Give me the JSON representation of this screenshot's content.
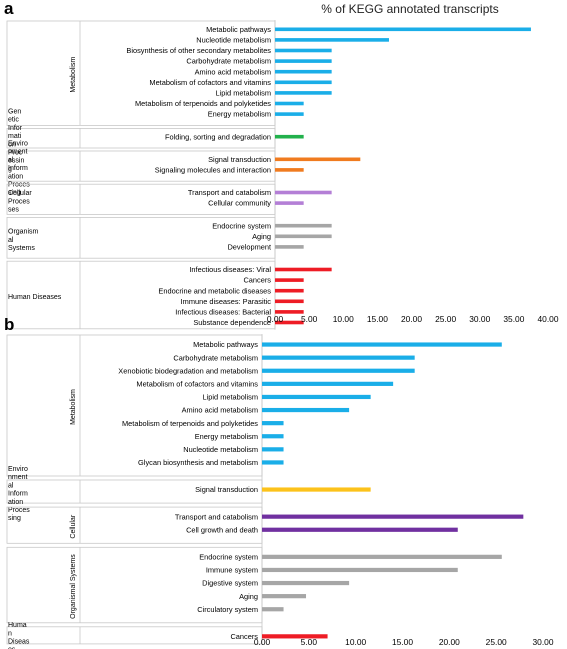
{
  "chart_data": [
    {
      "panel": "a",
      "type": "bar",
      "orientation": "horizontal",
      "title": "% of KEGG annotated transcripts",
      "xlim": [
        0,
        40
      ],
      "ticks": [
        "0.00",
        "5.00",
        "10.00",
        "15.00",
        "20.00",
        "25.00",
        "30.00",
        "35.00",
        "40.00"
      ],
      "grid": false,
      "groups": [
        {
          "label": [
            "Metabolism"
          ],
          "items": [
            {
              "label": "Metabolic pathways",
              "value": 37.5,
              "color": "#1aaee8"
            },
            {
              "label": "Nucleotide metabolism",
              "value": 16.7,
              "color": "#1aaee8"
            },
            {
              "label": "Biosynthesis of other secondary metabolites",
              "value": 8.3,
              "color": "#1aaee8"
            },
            {
              "label": "Carbohydrate metabolism",
              "value": 8.3,
              "color": "#1aaee8"
            },
            {
              "label": "Amino acid metabolism",
              "value": 8.3,
              "color": "#1aaee8"
            },
            {
              "label": "Metabolism of cofactors and vitamins",
              "value": 8.3,
              "color": "#1aaee8"
            },
            {
              "label": "Lipid metabolism",
              "value": 8.3,
              "color": "#1aaee8"
            },
            {
              "label": "Metabolism of terpenoids and polyketides",
              "value": 4.2,
              "color": "#1aaee8"
            },
            {
              "label": "Energy metabolism",
              "value": 4.2,
              "color": "#1aaee8"
            }
          ]
        },
        {
          "label": [
            "Gen",
            "etic",
            "Infor",
            "mati",
            "on",
            "Proc",
            "essin",
            "g"
          ],
          "items": [
            {
              "label": "Folding, sorting and degradation",
              "value": 4.2,
              "color": "#22b14c"
            }
          ]
        },
        {
          "label": [
            "Enviro",
            "nment",
            "al",
            "Inform",
            "ation",
            "Proces",
            "sing"
          ],
          "items": [
            {
              "label": "Signal transduction",
              "value": 12.5,
              "color": "#f07b1f"
            },
            {
              "label": "Signaling molecules and interaction",
              "value": 4.2,
              "color": "#f07b1f"
            }
          ]
        },
        {
          "label": [
            "Cellular",
            "Proces",
            "ses"
          ],
          "items": [
            {
              "label": "Transport and catabolism",
              "value": 8.3,
              "color": "#b47fd6"
            },
            {
              "label": "Cellular community",
              "value": 4.2,
              "color": "#b47fd6"
            }
          ]
        },
        {
          "label": [
            "Organism",
            "al",
            "Systems"
          ],
          "items": [
            {
              "label": "Endocrine system",
              "value": 8.3,
              "color": "#a6a6a6"
            },
            {
              "label": "Aging",
              "value": 8.3,
              "color": "#a6a6a6"
            },
            {
              "label": "Development",
              "value": 4.2,
              "color": "#a6a6a6"
            }
          ]
        },
        {
          "label": [
            "Human Diseases"
          ],
          "items": [
            {
              "label": "Infectious diseases: Viral",
              "value": 8.3,
              "color": "#ee1c25"
            },
            {
              "label": "Cancers",
              "value": 4.2,
              "color": "#ee1c25"
            },
            {
              "label": "Endocrine and metabolic diseases",
              "value": 4.2,
              "color": "#ee1c25"
            },
            {
              "label": "Immune diseases: Parasitic",
              "value": 4.2,
              "color": "#ee1c25"
            },
            {
              "label": "Infectious diseases: Bacterial",
              "value": 4.2,
              "color": "#ee1c25"
            },
            {
              "label": "Substance dependence",
              "value": 4.2,
              "color": "#ee1c25"
            }
          ]
        }
      ]
    },
    {
      "panel": "b",
      "type": "bar",
      "orientation": "horizontal",
      "xlim": [
        0,
        30
      ],
      "ticks": [
        "0.00",
        "5.00",
        "10.00",
        "15.00",
        "20.00",
        "25.00",
        "30.00"
      ],
      "grid": false,
      "groups": [
        {
          "label": [
            "Metabolism"
          ],
          "items": [
            {
              "label": "Metabolic pathways",
              "value": 25.6,
              "color": "#1aaee8"
            },
            {
              "label": "Carbohydrate metabolism",
              "value": 16.3,
              "color": "#1aaee8"
            },
            {
              "label": "Xenobiotic biodegradation and metabolism",
              "value": 16.3,
              "color": "#1aaee8"
            },
            {
              "label": "Metabolism of cofactors and vitamins",
              "value": 14.0,
              "color": "#1aaee8"
            },
            {
              "label": "Lipid metabolism",
              "value": 11.6,
              "color": "#1aaee8"
            },
            {
              "label": "Amino acid metabolism",
              "value": 9.3,
              "color": "#1aaee8"
            },
            {
              "label": "Metabolism of terpenoids and polyketides",
              "value": 2.3,
              "color": "#1aaee8"
            },
            {
              "label": "Energy metabolism",
              "value": 2.3,
              "color": "#1aaee8"
            },
            {
              "label": "Nucleotide metabolism",
              "value": 2.3,
              "color": "#1aaee8"
            },
            {
              "label": "Glycan biosynthesis and metabolism",
              "value": 2.3,
              "color": "#1aaee8"
            }
          ]
        },
        {
          "label": [
            "Enviro",
            "nment",
            "al",
            "Inform",
            "ation",
            "Proces",
            "sing"
          ],
          "items": [
            {
              "label": "Signal transduction",
              "value": 11.6,
              "color": "#fcc21b"
            }
          ]
        },
        {
          "label": [
            "Cellular",
            "Processes"
          ],
          "items": [
            {
              "label": "Transport and catabolism",
              "value": 27.9,
              "color": "#7030a0"
            },
            {
              "label": "Cell growth and death",
              "value": 20.9,
              "color": "#7030a0"
            }
          ]
        },
        {
          "label": [
            "Organismal Systems"
          ],
          "items": [
            {
              "label": "Endocrine system",
              "value": 25.6,
              "color": "#a6a6a6"
            },
            {
              "label": "Immune system",
              "value": 20.9,
              "color": "#a6a6a6"
            },
            {
              "label": "Digestive system",
              "value": 9.3,
              "color": "#a6a6a6"
            },
            {
              "label": "Aging",
              "value": 4.7,
              "color": "#a6a6a6"
            },
            {
              "label": "Circulatory system",
              "value": 2.3,
              "color": "#a6a6a6"
            }
          ]
        },
        {
          "label": [
            "Huma",
            "n",
            "Diseas",
            "es"
          ],
          "items": [
            {
              "label": "Cancers",
              "value": 7.0,
              "color": "#ee1c25"
            }
          ]
        }
      ]
    }
  ]
}
